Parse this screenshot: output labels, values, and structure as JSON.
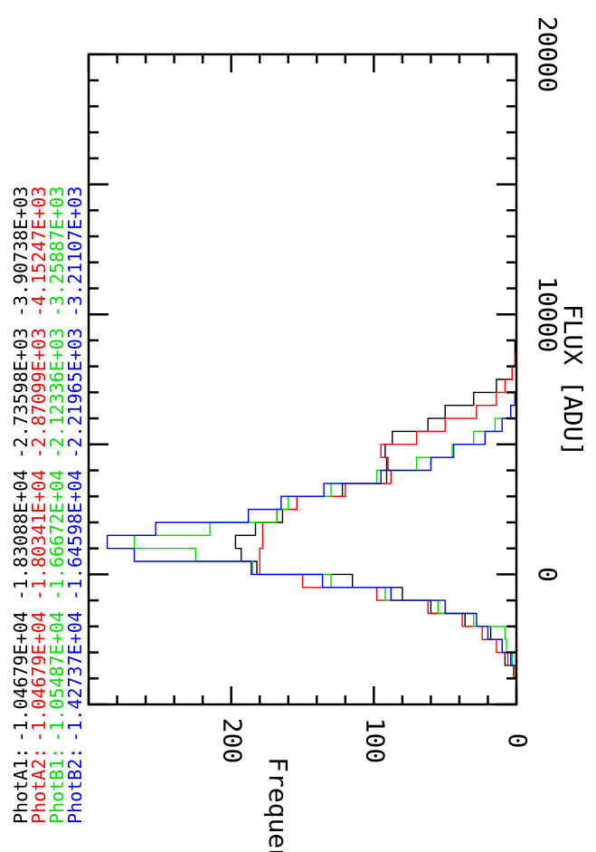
{
  "chart_data": {
    "type": "step-histogram",
    "orientation": "rotated-90-clockwise",
    "title": "",
    "xlabel": "FLUX [ADU]",
    "ylabel": "Frequency",
    "xlim": [
      -5000,
      20000
    ],
    "ylim": [
      0,
      300
    ],
    "x_ticks": [
      0,
      10000,
      20000
    ],
    "x_tick_labels": [
      "0",
      "10000",
      "20000"
    ],
    "y_ticks": [
      0,
      100,
      200
    ],
    "y_tick_labels": [
      "0",
      "100",
      "200"
    ],
    "grid": false,
    "legend_position": "top-left",
    "series": [
      {
        "name": "PhotA1:",
        "stats": "-1.04679E+04 -1.83088E+04 -2.73598E+03 -3.90738E+03",
        "color": "#000000",
        "bins": [
          [
            -4000,
            -3500,
            2
          ],
          [
            -3500,
            -3000,
            8
          ],
          [
            -3000,
            -2500,
            10
          ],
          [
            -2500,
            -2000,
            18
          ],
          [
            -2000,
            -1500,
            36
          ],
          [
            -1500,
            -1000,
            60
          ],
          [
            -1000,
            -500,
            80
          ],
          [
            -500,
            0,
            115
          ],
          [
            0,
            500,
            182
          ],
          [
            500,
            1000,
            193
          ],
          [
            1000,
            1500,
            197
          ],
          [
            1500,
            2000,
            183
          ],
          [
            2000,
            2500,
            164
          ],
          [
            2500,
            3000,
            154
          ],
          [
            3000,
            3500,
            122
          ],
          [
            3500,
            4000,
            91
          ],
          [
            4000,
            4500,
            91
          ],
          [
            4500,
            5000,
            92
          ],
          [
            5000,
            5500,
            87
          ],
          [
            5500,
            6000,
            62
          ],
          [
            6000,
            6500,
            50
          ],
          [
            6500,
            7000,
            30
          ],
          [
            7000,
            7500,
            14
          ],
          [
            7500,
            8000,
            3
          ],
          [
            8000,
            8500,
            1
          ],
          [
            8500,
            9000,
            1
          ],
          [
            9000,
            9500,
            0
          ]
        ]
      },
      {
        "name": "PhotA2:",
        "stats": "-1.04679E+04 -1.80341E+04 -2.87099E+03 -4.15247E+03",
        "color": "#ff0000",
        "bins": [
          [
            -4000,
            -3500,
            2
          ],
          [
            -3500,
            -3000,
            6
          ],
          [
            -3000,
            -2500,
            14
          ],
          [
            -2500,
            -2000,
            24
          ],
          [
            -2000,
            -1500,
            38
          ],
          [
            -1500,
            -1000,
            62
          ],
          [
            -1000,
            -500,
            98
          ],
          [
            -500,
            0,
            150
          ],
          [
            0,
            500,
            180
          ],
          [
            500,
            1000,
            180
          ],
          [
            1000,
            1500,
            178
          ],
          [
            1500,
            2000,
            178
          ],
          [
            2000,
            2500,
            168
          ],
          [
            2500,
            3000,
            154
          ],
          [
            3000,
            3500,
            120
          ],
          [
            3500,
            4000,
            88
          ],
          [
            4000,
            4500,
            90
          ],
          [
            4500,
            5000,
            95
          ],
          [
            5000,
            5500,
            70
          ],
          [
            5500,
            6000,
            50
          ],
          [
            6000,
            6500,
            28
          ],
          [
            6500,
            7000,
            14
          ],
          [
            7000,
            7500,
            8
          ],
          [
            7500,
            8000,
            3
          ],
          [
            8000,
            8500,
            1
          ],
          [
            8500,
            9000,
            0
          ]
        ]
      },
      {
        "name": "PhotB1:",
        "stats": "-1.05487E+04 -1.66672E+04 -2.12336E+03 -3.25887E+03",
        "color": "#00dd00",
        "bins": [
          [
            -4000,
            -3500,
            1
          ],
          [
            -3500,
            -3000,
            3
          ],
          [
            -3000,
            -2500,
            7
          ],
          [
            -2500,
            -2000,
            8
          ],
          [
            -2000,
            -1500,
            30
          ],
          [
            -1500,
            -1000,
            55
          ],
          [
            -1000,
            -500,
            92
          ],
          [
            -500,
            0,
            130
          ],
          [
            0,
            500,
            185
          ],
          [
            500,
            1000,
            225
          ],
          [
            1000,
            1500,
            268
          ],
          [
            1500,
            2000,
            215
          ],
          [
            2000,
            2500,
            168
          ],
          [
            2500,
            3000,
            160
          ],
          [
            3000,
            3500,
            130
          ],
          [
            3500,
            4000,
            98
          ],
          [
            4000,
            4500,
            70
          ],
          [
            4500,
            5000,
            45
          ],
          [
            5000,
            5500,
            30
          ],
          [
            5500,
            6000,
            15
          ],
          [
            6000,
            6500,
            4
          ],
          [
            6500,
            7000,
            1
          ],
          [
            7000,
            7500,
            0
          ]
        ]
      },
      {
        "name": "PhotB2:",
        "stats": "-1.42737E+04 -1.64598E+04 -2.21965E+03 -3.21107E+03",
        "color": "#0000ff",
        "bins": [
          [
            -4000,
            -3500,
            0
          ],
          [
            -3500,
            -3000,
            4
          ],
          [
            -3000,
            -2500,
            10
          ],
          [
            -2500,
            -2000,
            20
          ],
          [
            -2000,
            -1500,
            28
          ],
          [
            -1500,
            -1000,
            50
          ],
          [
            -1000,
            -500,
            88
          ],
          [
            -500,
            0,
            136
          ],
          [
            0,
            500,
            186
          ],
          [
            500,
            1000,
            268
          ],
          [
            1000,
            1500,
            287
          ],
          [
            1500,
            2000,
            253
          ],
          [
            2000,
            2500,
            188
          ],
          [
            2500,
            3000,
            165
          ],
          [
            3000,
            3500,
            135
          ],
          [
            3500,
            4000,
            95
          ],
          [
            4000,
            4500,
            60
          ],
          [
            4500,
            5000,
            44
          ],
          [
            5000,
            5500,
            22
          ],
          [
            5500,
            6000,
            10
          ],
          [
            6000,
            6500,
            4
          ],
          [
            6500,
            7000,
            1
          ],
          [
            7000,
            7500,
            0
          ]
        ]
      }
    ]
  }
}
